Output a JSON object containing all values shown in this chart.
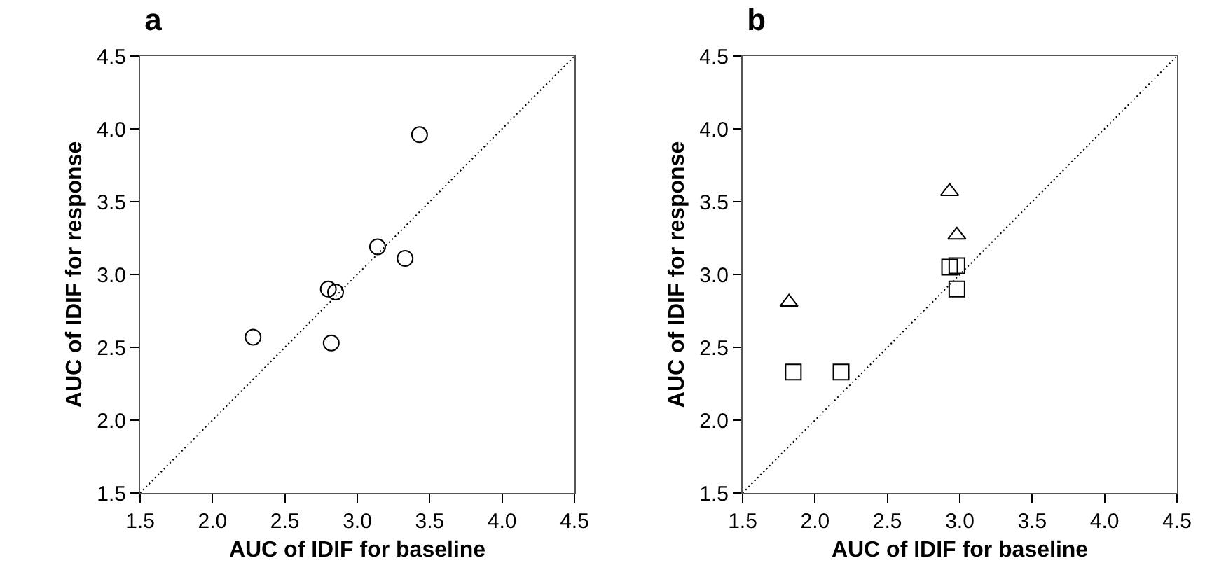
{
  "chart_data": [
    {
      "type": "scatter",
      "title": "a",
      "xlabel": "AUC of IDIF for baseline",
      "ylabel": "AUC of IDIF for response",
      "xlim": [
        1.5,
        4.5
      ],
      "ylim": [
        1.5,
        4.5
      ],
      "xticks": [
        1.5,
        {
          "value": 2,
          "label": "2.0"
        },
        2.5,
        {
          "value": 3,
          "label": "3.0"
        },
        3.5,
        {
          "value": 4,
          "label": "4.0"
        },
        4.5
      ],
      "yticks": [
        1.5,
        {
          "value": 2,
          "label": "2.0"
        },
        2.5,
        {
          "value": 3,
          "label": "3.0"
        },
        3.5,
        {
          "value": 4,
          "label": "4.0"
        },
        4.5
      ],
      "grid": false,
      "legend": false,
      "series": [
        {
          "marker": "circle",
          "color": "#000000",
          "x": [
            3.43,
            3.14,
            3.33,
            2.8,
            2.85,
            2.28,
            2.82
          ],
          "values": [
            3.96,
            3.19,
            3.11,
            2.9,
            2.88,
            2.57,
            2.53
          ]
        },
        {
          "type": "line",
          "marker": "none",
          "line_style": "dotted",
          "color": "#000000",
          "x": [
            1.5,
            4.5
          ],
          "values": [
            1.5,
            4.5
          ]
        }
      ]
    },
    {
      "type": "scatter",
      "title": "b",
      "xlabel": "AUC of IDIF for baseline",
      "ylabel": "AUC of IDIF for response",
      "xlim": [
        1.5,
        4.5
      ],
      "ylim": [
        1.5,
        4.5
      ],
      "xticks": [
        1.5,
        {
          "value": 2,
          "label": "2.0"
        },
        2.5,
        {
          "value": 3,
          "label": "3.0"
        },
        3.5,
        {
          "value": 4,
          "label": "4.0"
        },
        4.5
      ],
      "yticks": [
        1.5,
        {
          "value": 2,
          "label": "2.0"
        },
        2.5,
        {
          "value": 3,
          "label": "3.0"
        },
        3.5,
        {
          "value": 4,
          "label": "4.0"
        },
        4.5
      ],
      "grid": false,
      "legend": false,
      "series": [
        {
          "marker": "triangle",
          "color": "#000000",
          "x": [
            2.93,
            2.98,
            1.82
          ],
          "values": [
            3.57,
            3.27,
            2.81
          ]
        },
        {
          "marker": "square",
          "color": "#000000",
          "x": [
            1.85,
            2.18,
            2.93,
            2.98,
            2.98
          ],
          "values": [
            2.33,
            2.33,
            3.05,
            3.06,
            2.9
          ]
        },
        {
          "type": "line",
          "marker": "none",
          "line_style": "dotted",
          "color": "#000000",
          "x": [
            1.5,
            4.5
          ],
          "values": [
            1.5,
            4.5
          ]
        }
      ]
    }
  ]
}
